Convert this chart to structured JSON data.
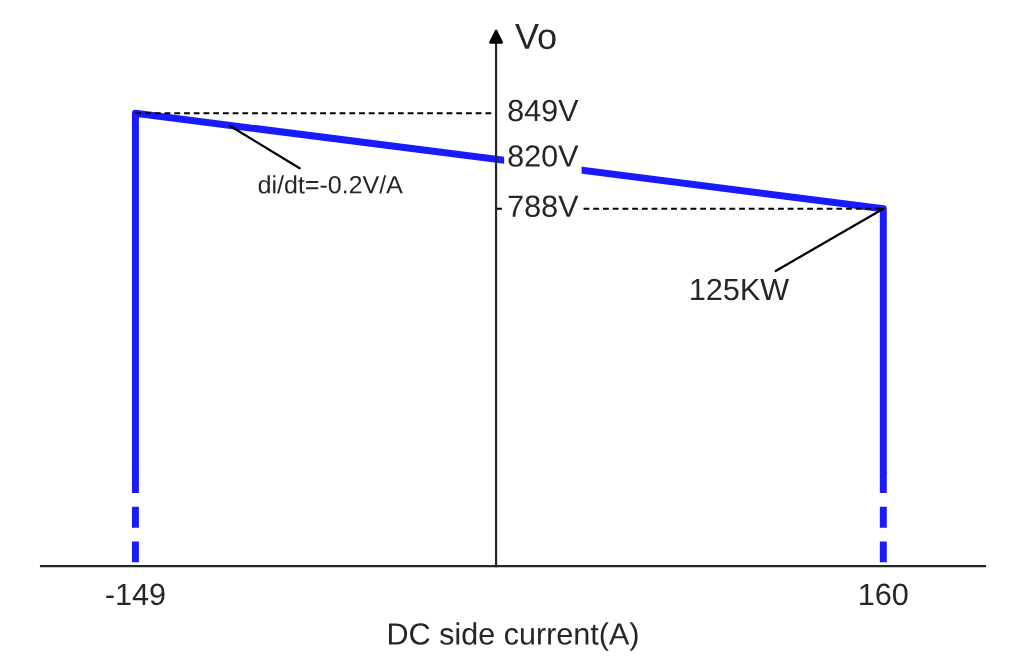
{
  "chart_data": {
    "type": "line",
    "xlabel": "DC side current(A)",
    "ylabel": "Vo",
    "series": [
      {
        "color": "#1a1aff",
        "line_style": "solid",
        "x": [
          -149,
          -149,
          160,
          160
        ],
        "values": [
          620,
          849,
          788,
          620
        ]
      },
      {
        "color": "#1a1aff",
        "line_style": "dashed",
        "x": [
          -149,
          -149
        ],
        "values": [
          620,
          560
        ]
      },
      {
        "color": "#1a1aff",
        "line_style": "dashed",
        "x": [
          160,
          160
        ],
        "values": [
          620,
          560
        ]
      },
      {
        "color": "#000000",
        "line_style": "dotted",
        "x": [
          -149,
          0
        ],
        "values": [
          849,
          849
        ]
      },
      {
        "color": "#000000",
        "line_style": "dotted",
        "x": [
          0,
          160
        ],
        "values": [
          788,
          788
        ]
      }
    ],
    "xlim": [
      -188,
      202
    ],
    "xticks": [
      -149,
      160
    ],
    "ylim": [
      560,
      900
    ],
    "yticks": [
      {
        "value": 849,
        "label": "849V"
      },
      {
        "value": 820,
        "label": "820V"
      },
      {
        "value": 788,
        "label": "788V"
      }
    ],
    "annotations": [
      {
        "text": "di/dt=-0.2V/A",
        "x": -110,
        "y": 841
      },
      {
        "text": "125KW",
        "x": 160,
        "y": 788
      }
    ],
    "grid": false,
    "legend": false,
    "marker": "none"
  }
}
